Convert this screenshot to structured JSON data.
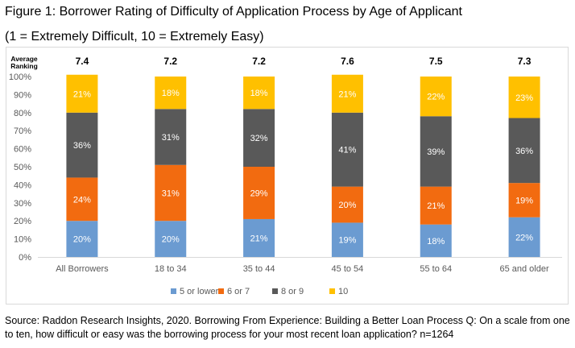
{
  "title_line1": "Figure 1: Borrower Rating of Difficulty of Application Process by Age of Applicant",
  "title_line2": "(1 = Extremely Difficult, 10 = Extremely Easy)",
  "source_text": "Source: Raddon Research Insights, 2020. Borrowing From Experience: Building a Better Loan Process Q: On a scale from one to ten, how difficult or easy was the borrowing process for your most recent loan application? n=1264",
  "chart_data": {
    "type": "bar",
    "stacked": true,
    "percent": true,
    "categories": [
      "All Borrowers",
      "18 to 34",
      "35 to 44",
      "45 to 54",
      "55 to 64",
      "65 and older"
    ],
    "series": [
      {
        "name": "5 or lower",
        "color": "#6b9bd1",
        "values": [
          20,
          20,
          21,
          19,
          18,
          22
        ]
      },
      {
        "name": "6 or 7",
        "color": "#f26b10",
        "values": [
          24,
          31,
          29,
          20,
          21,
          19
        ]
      },
      {
        "name": "8 or 9",
        "color": "#595959",
        "values": [
          36,
          31,
          32,
          41,
          39,
          36
        ]
      },
      {
        "name": "10",
        "color": "#ffc000",
        "values": [
          21,
          18,
          18,
          21,
          22,
          23
        ]
      }
    ],
    "ylim": [
      0,
      100
    ],
    "yticks": [
      "0%",
      "10%",
      "20%",
      "30%",
      "40%",
      "50%",
      "60%",
      "70%",
      "80%",
      "90%",
      "100%"
    ],
    "ranking_label": "Average Ranking",
    "rankings": [
      "7.4",
      "7.2",
      "7.2",
      "7.6",
      "7.5",
      "7.3"
    ],
    "legend_position": "bottom",
    "grid": false
  }
}
